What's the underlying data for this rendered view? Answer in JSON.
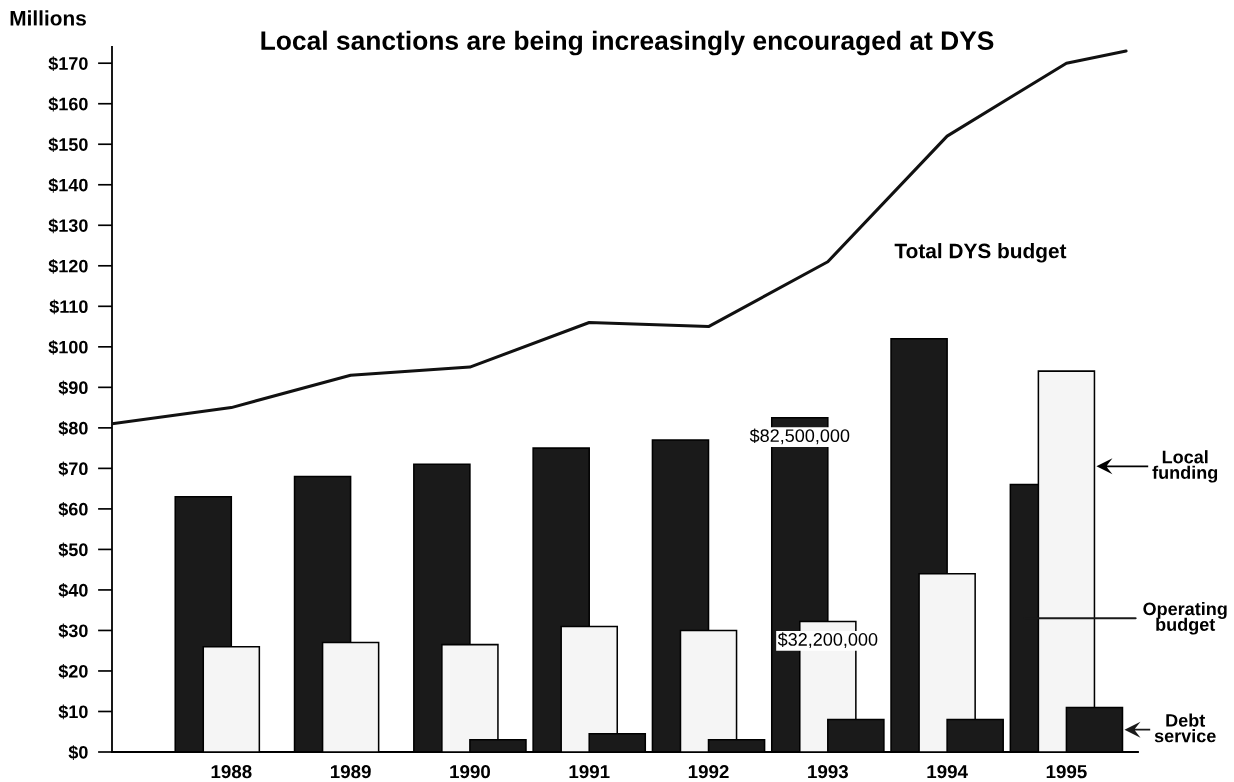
{
  "chart_data": {
    "type": "bar",
    "title": "Local sanctions are being increasingly encouraged at DYS",
    "ylabel": "Millions",
    "x": [
      1988,
      1989,
      1990,
      1991,
      1992,
      1993,
      1994,
      1995
    ],
    "xlim": [
      1987,
      1995.6
    ],
    "xticks": [
      1988,
      1989,
      1990,
      1991,
      1992,
      1993,
      1994,
      1995
    ],
    "ylim": [
      0,
      174
    ],
    "yticks": [
      {
        "value": 0,
        "label": "$0"
      },
      {
        "value": 10,
        "label": "$10"
      },
      {
        "value": 20,
        "label": "$20"
      },
      {
        "value": 30,
        "label": "$30"
      },
      {
        "value": 40,
        "label": "$40"
      },
      {
        "value": 50,
        "label": "$50"
      },
      {
        "value": 60,
        "label": "$60"
      },
      {
        "value": 70,
        "label": "$70"
      },
      {
        "value": 80,
        "label": "$80"
      },
      {
        "value": 90,
        "label": "$90"
      },
      {
        "value": 100,
        "label": "$100"
      },
      {
        "value": 110,
        "label": "$110"
      },
      {
        "value": 120,
        "label": "$120"
      },
      {
        "value": 130,
        "label": "$130"
      },
      {
        "value": 140,
        "label": "$140"
      },
      {
        "value": 150,
        "label": "$150"
      },
      {
        "value": 160,
        "label": "$160"
      },
      {
        "value": 170,
        "label": "$170"
      }
    ],
    "legend": "right",
    "series": [
      {
        "name": "Operating\nbudget",
        "color": "#1a1a1a",
        "values": [
          63,
          68,
          71,
          75,
          77,
          82.5,
          102,
          66
        ]
      },
      {
        "name": "Local\nfunding",
        "color": "#f5f5f5",
        "values": [
          26,
          27,
          26.5,
          31,
          30,
          32.2,
          44,
          94
        ]
      },
      {
        "name": "Debt\nservice",
        "color": "#1a1a1a",
        "values": [
          null,
          null,
          3,
          4.5,
          3,
          8,
          8,
          11
        ]
      },
      {
        "name": "Total DYS budget",
        "type": "line",
        "color": "#111111",
        "x": [
          1987,
          1988,
          1989,
          1990,
          1991,
          1992,
          1993,
          1994,
          1995,
          1995.5
        ],
        "values": [
          81,
          85,
          93,
          95,
          106,
          105,
          121,
          152,
          170,
          173
        ]
      }
    ],
    "annotations": [
      {
        "text": "$82,500,000",
        "x": 1993,
        "y": 82.5
      },
      {
        "text": "$32,200,000",
        "x": 1993,
        "y": 32.2
      }
    ]
  }
}
